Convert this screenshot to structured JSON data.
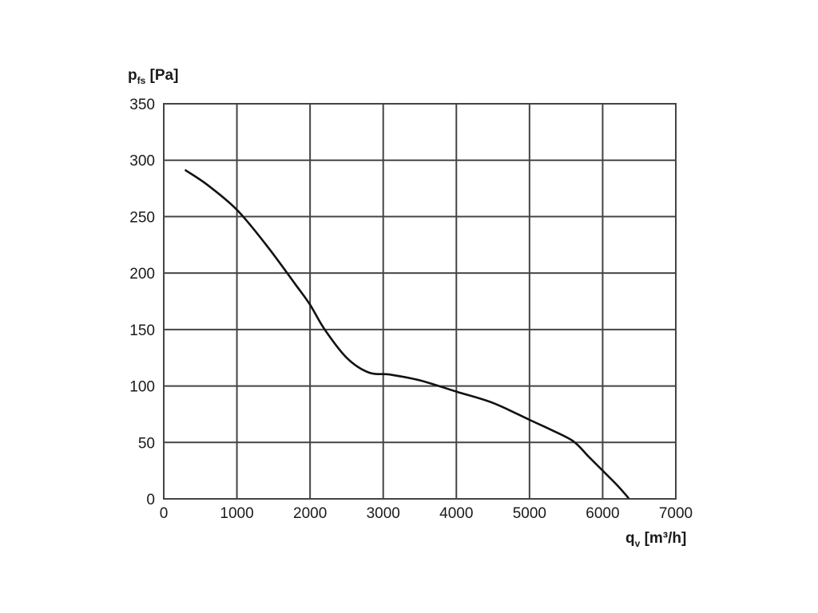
{
  "chart_data": {
    "type": "line",
    "title": "",
    "ylabel": {
      "main": "p",
      "sub": "fs",
      "unit": " [Pa]"
    },
    "xlabel": {
      "main": "q",
      "sub": "v",
      "unit": " [m³/h]"
    },
    "xlim": [
      0,
      7000
    ],
    "ylim": [
      0,
      350
    ],
    "x_ticks": [
      0,
      1000,
      2000,
      3000,
      4000,
      5000,
      6000,
      7000
    ],
    "y_ticks": [
      0,
      50,
      100,
      150,
      200,
      250,
      300,
      350
    ],
    "grid": true,
    "line_color": "#111111",
    "grid_color": "#444444",
    "series": [
      {
        "x": [
          300,
          600,
          1000,
          1400,
          1800,
          2000,
          2200,
          2500,
          2800,
          3100,
          3500,
          4000,
          4500,
          5000,
          5300,
          5600,
          5800,
          6000,
          6200,
          6350
        ],
        "y": [
          291,
          278,
          256,
          225,
          190,
          172,
          150,
          125,
          112,
          110,
          105,
          95,
          85,
          70,
          61,
          51,
          38,
          25,
          12,
          1
        ]
      }
    ]
  }
}
